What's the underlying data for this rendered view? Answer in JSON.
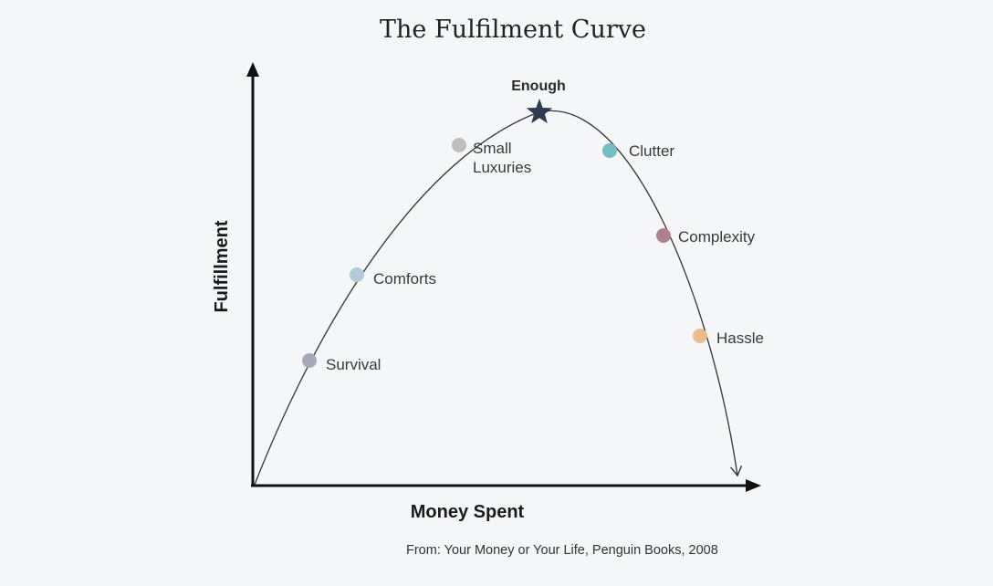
{
  "title": "The Fulfilment Curve",
  "axes": {
    "y_label": "Fulfillment",
    "x_label": "Money Spent"
  },
  "peak": {
    "label": "Enough",
    "icon": "star-icon",
    "color": "#2f3a4f"
  },
  "stages": [
    {
      "label": "Survival",
      "color": "#a7a8ba"
    },
    {
      "label": "Comforts",
      "color": "#b3cad8"
    },
    {
      "label_lines": [
        "Small",
        "Luxuries"
      ],
      "color": "#bdbdbd"
    },
    {
      "label": "Clutter",
      "color": "#78bcc4"
    },
    {
      "label": "Complexity",
      "color": "#b0808e"
    },
    {
      "label": "Hassle",
      "color": "#ebbd8c"
    }
  ],
  "source": "From: Your Money or Your Life, Penguin Books, 2008",
  "colors": {
    "background": "#f5f6f8",
    "axis": "#111111",
    "curve": "#333333"
  }
}
